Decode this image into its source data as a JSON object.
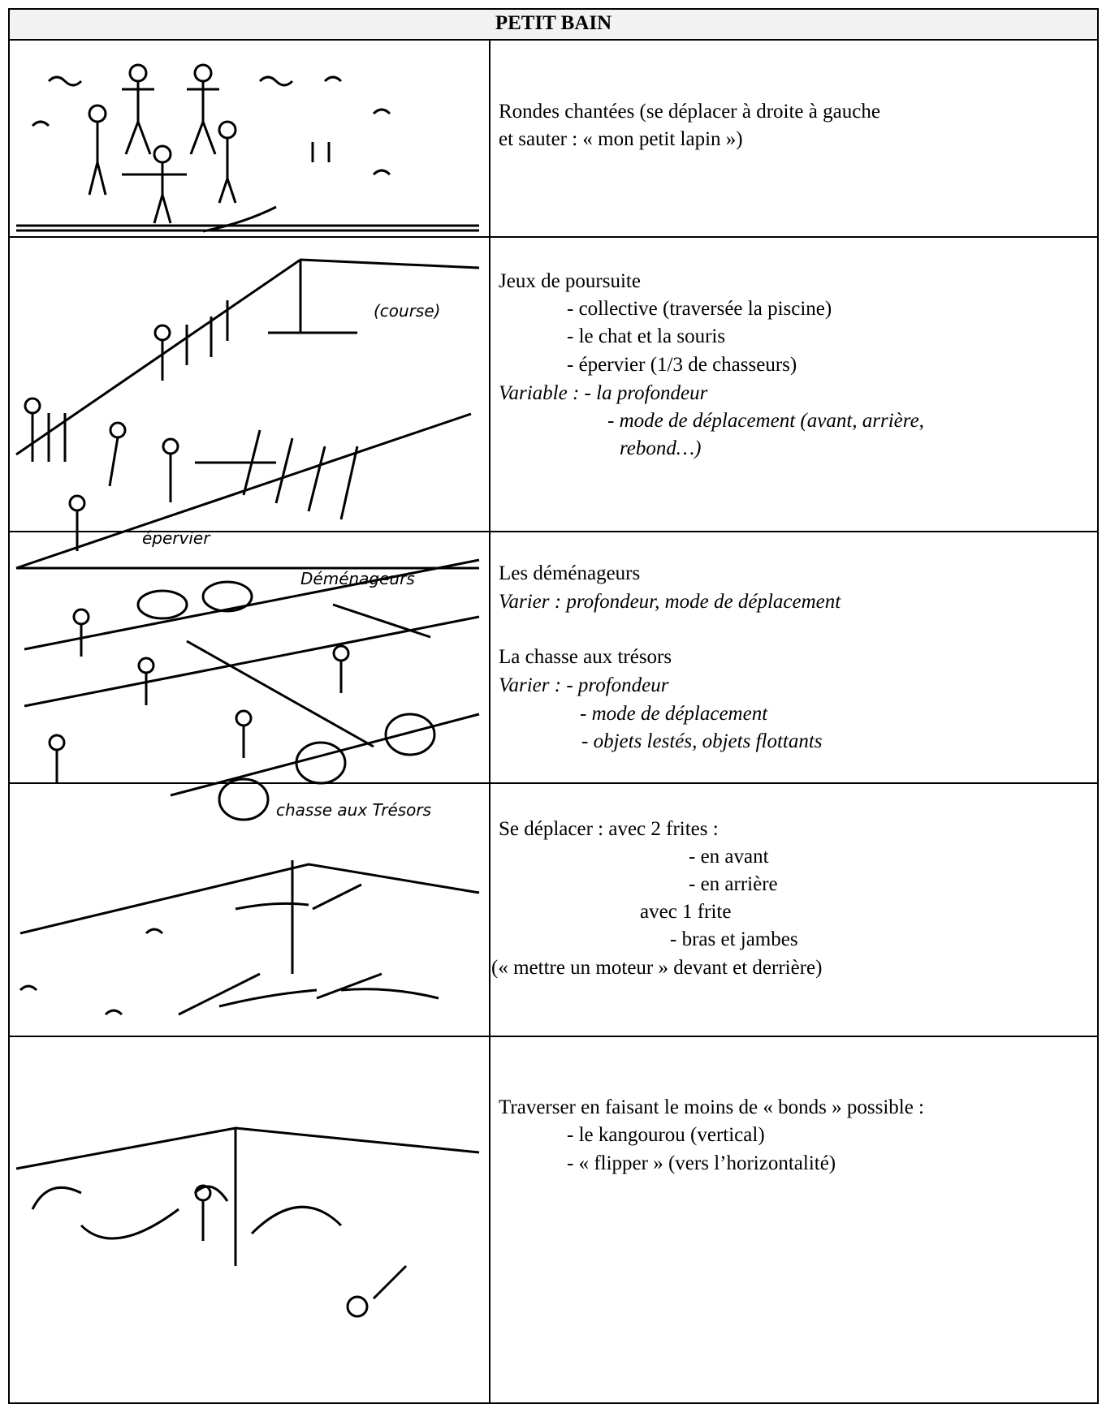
{
  "header": {
    "title": "PETIT BAIN"
  },
  "rows": [
    {
      "lines": [
        "Rondes chantées (se déplacer à droite à gauche",
        "et sauter : « mon petit lapin »)"
      ]
    },
    {
      "lines": [
        "Jeux de poursuite",
        "- collective (traversée la piscine)",
        "- le chat et la souris",
        "- épervier (1/3 de chasseurs)",
        "Variable : - la profondeur",
        "- mode de déplacement (avant, arrière,",
        "rebond…)"
      ],
      "sketch_labels": [
        "(course)",
        "épervier"
      ]
    },
    {
      "lines": [
        "Les déménageurs",
        "Varier : profondeur, mode de déplacement",
        "La chasse aux trésors",
        "Varier : - profondeur",
        "- mode de déplacement",
        "- objets lestés, objets flottants"
      ],
      "sketch_labels": [
        "Déménageurs",
        "chasse aux Trésors"
      ]
    },
    {
      "lines": [
        "Se déplacer : avec 2 frites :",
        "- en avant",
        "- en arrière",
        "avec 1 frite",
        "- bras et jambes",
        "(« mettre un moteur » devant et derrière)"
      ]
    },
    {
      "lines": [
        "Traverser en faisant le moins de « bonds » possible :",
        "- le kangourou (vertical)",
        "- « flipper »  (vers l’horizontalité)"
      ]
    }
  ]
}
